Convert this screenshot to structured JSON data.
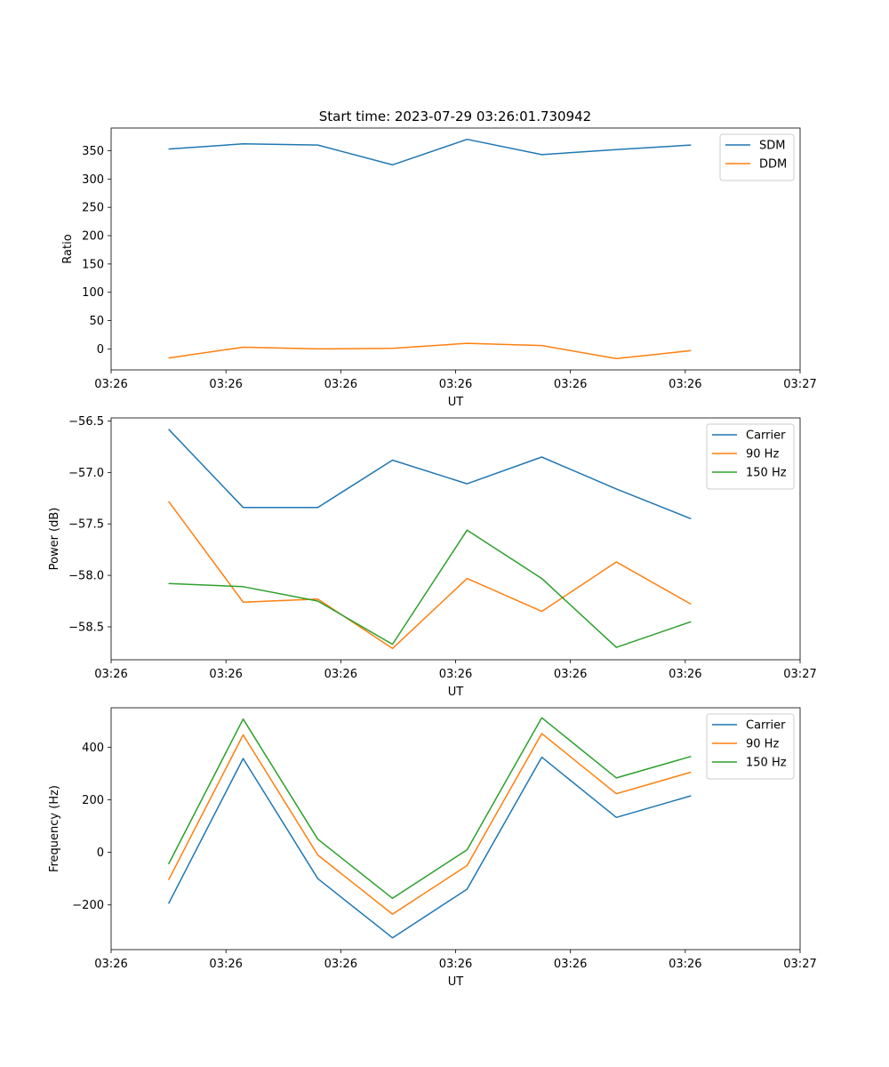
{
  "figure_title": "Start time: 2023-07-29 03:26:01.730942",
  "colors": {
    "blue": "#1f77b4",
    "orange": "#ff7f0e",
    "green": "#2ca02c"
  },
  "chart_data": [
    {
      "type": "line",
      "title": "Start time: 2023-07-29 03:26:01.730942",
      "xlabel": "UT",
      "ylabel": "Ratio",
      "x": [
        0.5,
        1.15,
        1.8,
        2.45,
        3.1,
        3.75,
        4.4,
        5.05
      ],
      "xlim": [
        0,
        6
      ],
      "xticks": [
        0,
        1,
        2,
        3,
        4,
        5,
        6
      ],
      "xtick_labels": [
        "03:26",
        "03:26",
        "03:26",
        "03:26",
        "03:26",
        "03:26",
        "03:27"
      ],
      "ylim": [
        -37,
        390
      ],
      "yticks": [
        0,
        50,
        100,
        150,
        200,
        250,
        300,
        350
      ],
      "ytick_labels": [
        "0",
        "50",
        "100",
        "150",
        "200",
        "250",
        "300",
        "350"
      ],
      "legend_position": "top-right",
      "series": [
        {
          "name": "SDM",
          "color": "#1f77b4",
          "values": [
            353,
            362,
            360,
            325,
            370,
            343,
            352,
            360
          ]
        },
        {
          "name": "DDM",
          "color": "#ff7f0e",
          "values": [
            -16,
            3,
            0,
            1,
            10,
            6,
            -17,
            -3
          ]
        }
      ]
    },
    {
      "type": "line",
      "xlabel": "UT",
      "ylabel": "Power (dB)",
      "x": [
        0.5,
        1.15,
        1.8,
        2.45,
        3.1,
        3.75,
        4.4,
        5.05
      ],
      "xlim": [
        0,
        6
      ],
      "xticks": [
        0,
        1,
        2,
        3,
        4,
        5,
        6
      ],
      "xtick_labels": [
        "03:26",
        "03:26",
        "03:26",
        "03:26",
        "03:26",
        "03:26",
        "03:27"
      ],
      "ylim": [
        -58.82,
        -56.47
      ],
      "yticks": [
        -58.5,
        -58.0,
        -57.5,
        -57.0,
        -56.5
      ],
      "ytick_labels": [
        "−58.5",
        "−58.0",
        "−57.5",
        "−57.0",
        "−56.5"
      ],
      "legend_position": "top-right",
      "series": [
        {
          "name": "Carrier",
          "color": "#1f77b4",
          "values": [
            -56.58,
            -57.34,
            -57.34,
            -56.88,
            -57.11,
            -56.85,
            -57.16,
            -57.45
          ]
        },
        {
          "name": "90 Hz",
          "color": "#ff7f0e",
          "values": [
            -57.28,
            -58.26,
            -58.23,
            -58.71,
            -58.03,
            -58.35,
            -57.87,
            -58.28
          ]
        },
        {
          "name": "150 Hz",
          "color": "#2ca02c",
          "values": [
            -58.08,
            -58.11,
            -58.25,
            -58.67,
            -57.56,
            -58.03,
            -58.7,
            -58.45
          ]
        }
      ]
    },
    {
      "type": "line",
      "xlabel": "UT",
      "ylabel": "Frequency (Hz)",
      "x": [
        0.5,
        1.15,
        1.8,
        2.45,
        3.1,
        3.75,
        4.4,
        5.05
      ],
      "xlim": [
        0,
        6
      ],
      "xticks": [
        0,
        1,
        2,
        3,
        4,
        5,
        6
      ],
      "xtick_labels": [
        "03:26",
        "03:26",
        "03:26",
        "03:26",
        "03:26",
        "03:26",
        "03:27"
      ],
      "ylim": [
        -370,
        550
      ],
      "yticks": [
        -200,
        0,
        200,
        400
      ],
      "ytick_labels": [
        "−200",
        "0",
        "200",
        "400"
      ],
      "legend_position": "top-right",
      "series": [
        {
          "name": "Carrier",
          "color": "#1f77b4",
          "values": [
            -195,
            357,
            -100,
            -325,
            -140,
            362,
            133,
            215
          ]
        },
        {
          "name": "90 Hz",
          "color": "#ff7f0e",
          "values": [
            -105,
            447,
            -10,
            -235,
            -50,
            452,
            223,
            305
          ]
        },
        {
          "name": "150 Hz",
          "color": "#2ca02c",
          "values": [
            -45,
            507,
            50,
            -175,
            10,
            512,
            283,
            365
          ]
        }
      ]
    }
  ]
}
